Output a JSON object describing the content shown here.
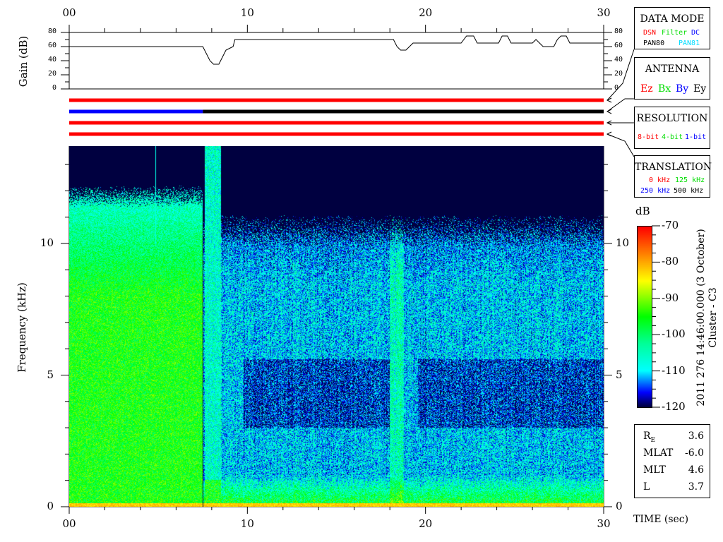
{
  "chart_data": {
    "type": "heatmap",
    "title": "",
    "xlabel": "TIME (sec)",
    "ylabel": "Frequency (kHz)",
    "xlim": [
      0,
      30
    ],
    "ylim": [
      0,
      13.7
    ],
    "x_ticks": [
      "00",
      "10",
      "20",
      "30"
    ],
    "y_ticks": [
      "0",
      "5",
      "10"
    ],
    "colorbar": {
      "label": "dB",
      "range": [
        -120,
        -70
      ],
      "ticks": [
        "-70",
        "-80",
        "-90",
        "-100",
        "-110",
        "-120"
      ],
      "colormap": [
        "#000040",
        "#0000ff",
        "#00ffff",
        "#00ff99",
        "#00ff00",
        "#ffff00",
        "#ff8000",
        "#ff0000"
      ]
    },
    "gain_panel": {
      "ylabel": "Gain (dB)",
      "ylim": [
        0,
        80
      ],
      "y_ticks": [
        "80",
        "60",
        "40",
        "20",
        "0"
      ],
      "series": {
        "t": [
          0,
          7.5,
          7.7,
          7.9,
          8.1,
          8.4,
          8.6,
          8.8,
          9.2,
          9.3,
          18.2,
          18.4,
          18.6,
          18.9,
          19.1,
          19.3,
          22.0,
          22.3,
          22.7,
          22.9,
          24.1,
          24.3,
          24.6,
          24.8,
          26.0,
          26.2,
          26.4,
          26.6,
          27.2,
          27.4,
          27.6,
          27.9,
          28.1,
          30
        ],
        "gain_db": [
          60,
          60,
          50,
          40,
          35,
          35,
          45,
          55,
          60,
          70,
          70,
          60,
          55,
          55,
          60,
          65,
          65,
          75,
          75,
          65,
          65,
          75,
          75,
          65,
          65,
          70,
          65,
          60,
          60,
          70,
          75,
          75,
          65,
          65
        ]
      }
    },
    "status_bars": [
      {
        "segments": [
          {
            "from": 0,
            "to": 30,
            "color": "#ff0000"
          }
        ]
      },
      {
        "segments": [
          {
            "from": 0,
            "to": 7.5,
            "color": "#0000ff"
          },
          {
            "from": 7.5,
            "to": 30,
            "color": "#000000"
          }
        ]
      },
      {
        "segments": [
          {
            "from": 0,
            "to": 30,
            "color": "#ff0000"
          }
        ]
      },
      {
        "segments": [
          {
            "from": 0,
            "to": 30,
            "color": "#ff0000"
          }
        ]
      }
    ],
    "features": {
      "upper_cutoff_khz_before_7_5s": 11.8,
      "upper_cutoff_khz_after_8_5s": 10.5,
      "broadband_burst_s": [
        7.6,
        8.5
      ],
      "dark_band_khz": [
        3,
        5.6
      ]
    }
  },
  "legend": {
    "data_mode": {
      "title": "DATA MODE",
      "items": [
        {
          "label": "DSN",
          "color": "#ff0000"
        },
        {
          "label": "Filter",
          "color": "#00dd00"
        },
        {
          "label": "DC",
          "color": "#0000ff"
        },
        {
          "label": "PAN80",
          "color": "#000000"
        },
        {
          "label": "PAN81",
          "color": "#00e0ff"
        }
      ]
    },
    "antenna": {
      "title": "ANTENNA",
      "items": [
        {
          "label": "Ez",
          "color": "#ff0000"
        },
        {
          "label": "Bx",
          "color": "#00dd00"
        },
        {
          "label": "By",
          "color": "#0000ff"
        },
        {
          "label": "Ey",
          "color": "#000000"
        }
      ]
    },
    "resolution": {
      "title": "RESOLUTION",
      "items": [
        {
          "label": "8-bit",
          "color": "#ff0000"
        },
        {
          "label": "4-bit",
          "color": "#00dd00"
        },
        {
          "label": "1-bit",
          "color": "#0000ff"
        }
      ]
    },
    "translation": {
      "title": "TRANSLATION",
      "items": [
        {
          "label": "0 kHz",
          "color": "#ff0000"
        },
        {
          "label": "125 kHz",
          "color": "#00dd00"
        },
        {
          "label": "250 kHz",
          "color": "#0000ff"
        },
        {
          "label": "500 kHz",
          "color": "#000000"
        }
      ]
    }
  },
  "datetime": "2011 276 14:46:00.000 (3 October)",
  "spacecraft": "Cluster - C3",
  "info": [
    {
      "label": "R",
      "sub": "E",
      "value": "3.6"
    },
    {
      "label": "MLAT",
      "sub": "",
      "value": "-6.0"
    },
    {
      "label": "MLT",
      "sub": "",
      "value": "4.6"
    },
    {
      "label": "L",
      "sub": "",
      "value": "3.7"
    }
  ]
}
